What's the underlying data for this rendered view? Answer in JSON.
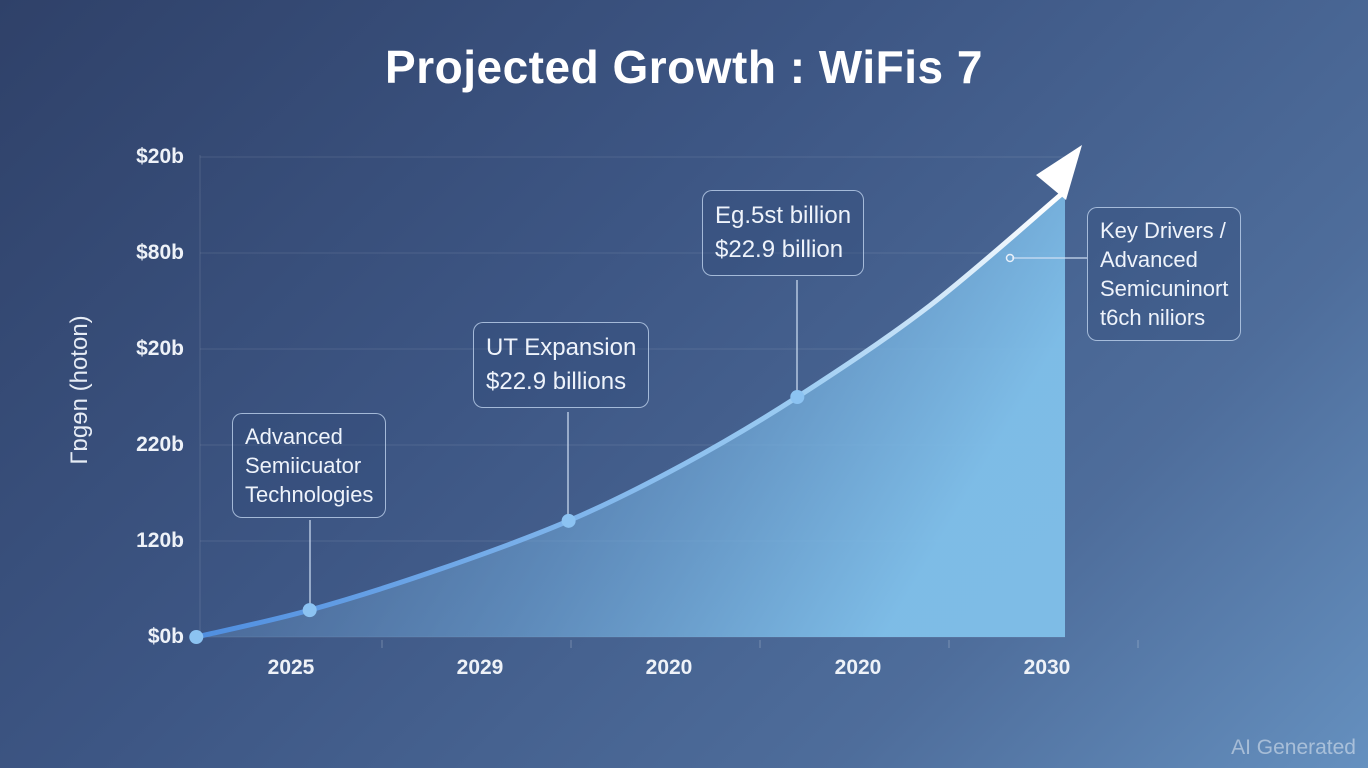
{
  "chart_data": {
    "type": "area",
    "title": "Projected Growth : WiFis 7",
    "ylabel": "Γɒɡɘn (hoton)",
    "xlabel": "",
    "y_tick_labels": [
      "$0b",
      "120b",
      "220b",
      "$20b",
      "$80b",
      "$20b"
    ],
    "x_tick_labels": [
      "2025",
      "2029",
      "2020",
      "2020",
      "2030"
    ],
    "xlim_tick_units": [
      -0.5,
      4.2
    ],
    "ylim_tick_units": [
      0,
      5
    ],
    "grid": true,
    "series": [
      {
        "name": "growth",
        "x": [
          -0.48,
          0.12,
          0.8,
          1.49,
          2.1,
          2.7,
          3.4,
          4.09
        ],
        "y": [
          0,
          0.28,
          0.7,
          1.21,
          1.8,
          2.5,
          3.45,
          4.6
        ]
      }
    ],
    "markers": [
      {
        "x": -0.48,
        "y": 0
      },
      {
        "x": 0.12,
        "y": 0.28
      },
      {
        "x": 1.49,
        "y": 1.21
      },
      {
        "x": 2.7,
        "y": 2.5
      }
    ],
    "annotations": [
      {
        "lines": [
          "Advanced",
          "Semiicuator",
          "Technologies"
        ]
      },
      {
        "lines": [
          "UT Expansion",
          "$22.9 billions"
        ]
      },
      {
        "lines": [
          "Eg.5st billion",
          "$22.9 billion"
        ]
      },
      {
        "lines": [
          "Key Drivers /",
          "Advanced",
          "Semicuninort",
          "t6ch niliors"
        ]
      }
    ]
  },
  "watermark": "AI Generated",
  "colors": {
    "line": "#6aa6ea",
    "area": "#7fbde6",
    "marker": "#8cc3f2"
  }
}
